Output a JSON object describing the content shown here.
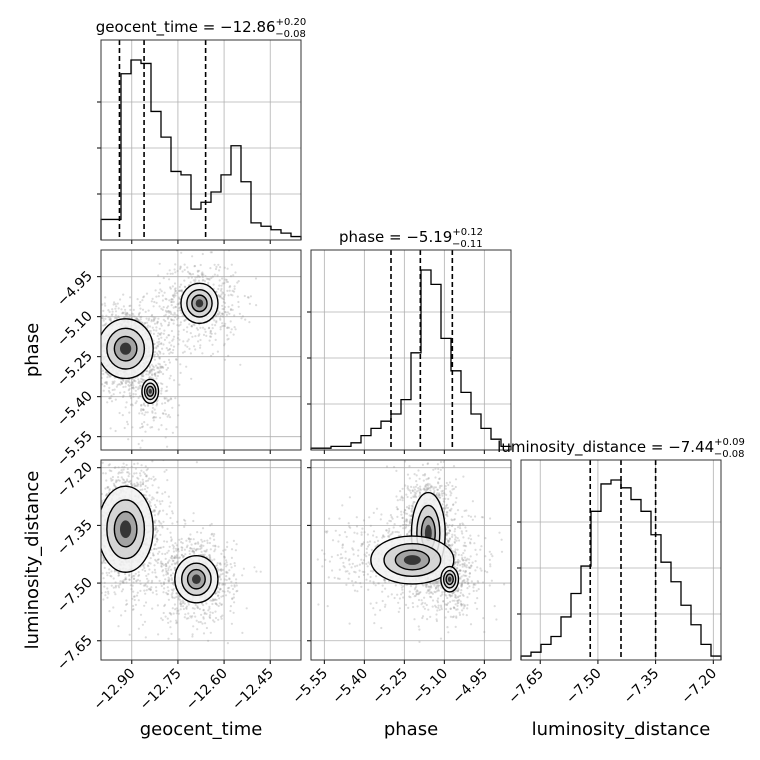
{
  "chart_data": {
    "type": "corner",
    "parameters": [
      {
        "name": "geocent_time",
        "label": "geocent_time",
        "title": {
          "prefix": "geocent_time = ",
          "value": "−12.86",
          "plus": "+0.20",
          "minus": "−0.08"
        },
        "range": [
          -13.0,
          -12.35
        ],
        "ticks": [
          -12.9,
          -12.75,
          -12.6,
          -12.45
        ],
        "tick_labels": [
          "−12.90",
          "−12.75",
          "−12.60",
          "−12.45"
        ],
        "quantiles": [
          -12.94,
          -12.86,
          -12.66
        ],
        "hist_bins": [
          0.12,
          0.12,
          0.97,
          1.05,
          1.03,
          0.75,
          0.6,
          0.4,
          0.38,
          0.18,
          0.22,
          0.28,
          0.38,
          0.55,
          0.34,
          0.1,
          0.08,
          0.06,
          0.04,
          0.02
        ]
      },
      {
        "name": "phase",
        "label": "phase",
        "title": {
          "prefix": "phase = ",
          "value": "−5.19",
          "plus": "+0.12",
          "minus": "−0.11"
        },
        "range": [
          -5.6,
          -4.85
        ],
        "ticks": [
          -5.55,
          -5.4,
          -5.25,
          -5.1,
          -4.95
        ],
        "tick_labels": [
          "−5.55",
          "−5.40",
          "−5.25",
          "−5.10",
          "−4.95"
        ],
        "quantiles": [
          -5.3,
          -5.19,
          -5.07
        ],
        "hist_bins": [
          0.01,
          0.01,
          0.02,
          0.02,
          0.04,
          0.08,
          0.12,
          0.16,
          0.2,
          0.28,
          0.54,
          1.0,
          0.92,
          0.62,
          0.44,
          0.32,
          0.2,
          0.12,
          0.06,
          0.02
        ]
      },
      {
        "name": "luminosity_distance",
        "label": "luminosity_distance",
        "title": {
          "prefix": "luminosity_distance = ",
          "value": "−7.44",
          "plus": "+0.09",
          "minus": "−0.08"
        },
        "range": [
          -7.7,
          -7.18
        ],
        "ticks": [
          -7.65,
          -7.5,
          -7.35,
          -7.2
        ],
        "tick_labels": [
          "−7.65",
          "−7.50",
          "−7.35",
          "−7.20"
        ],
        "quantiles": [
          -7.52,
          -7.44,
          -7.35
        ],
        "hist_bins": [
          0.02,
          0.04,
          0.08,
          0.12,
          0.22,
          0.34,
          0.48,
          0.76,
          0.9,
          0.92,
          0.88,
          0.82,
          0.76,
          0.64,
          0.5,
          0.4,
          0.28,
          0.18,
          0.08,
          0.02
        ]
      }
    ],
    "pairs": [
      {
        "x": "geocent_time",
        "y": "phase",
        "modes": [
          {
            "center": [
              -12.92,
              -5.22
            ],
            "spread": [
              0.04,
              0.05
            ],
            "weight": 0.62
          },
          {
            "center": [
              -12.68,
              -5.05
            ],
            "spread": [
              0.04,
              0.05
            ],
            "weight": 0.28
          },
          {
            "center": [
              -12.84,
              -5.38
            ],
            "spread": [
              0.03,
              0.05
            ],
            "weight": 0.1
          }
        ]
      },
      {
        "x": "geocent_time",
        "y": "luminosity_distance",
        "modes": [
          {
            "center": [
              -12.92,
              -7.36
            ],
            "spread": [
              0.04,
              0.05
            ],
            "weight": 0.62
          },
          {
            "center": [
              -12.69,
              -7.49
            ],
            "spread": [
              0.04,
              0.035
            ],
            "weight": 0.38
          }
        ]
      },
      {
        "x": "phase",
        "y": "luminosity_distance",
        "modes": [
          {
            "center": [
              -5.16,
              -7.37
            ],
            "spread": [
              0.03,
              0.05
            ],
            "weight": 0.55
          },
          {
            "center": [
              -5.22,
              -7.44
            ],
            "spread": [
              0.1,
              0.04
            ],
            "weight": 0.3
          },
          {
            "center": [
              -5.08,
              -7.49
            ],
            "spread": [
              0.03,
              0.03
            ],
            "weight": 0.15
          }
        ]
      }
    ],
    "grid": true,
    "quantile_style": "dashed"
  }
}
